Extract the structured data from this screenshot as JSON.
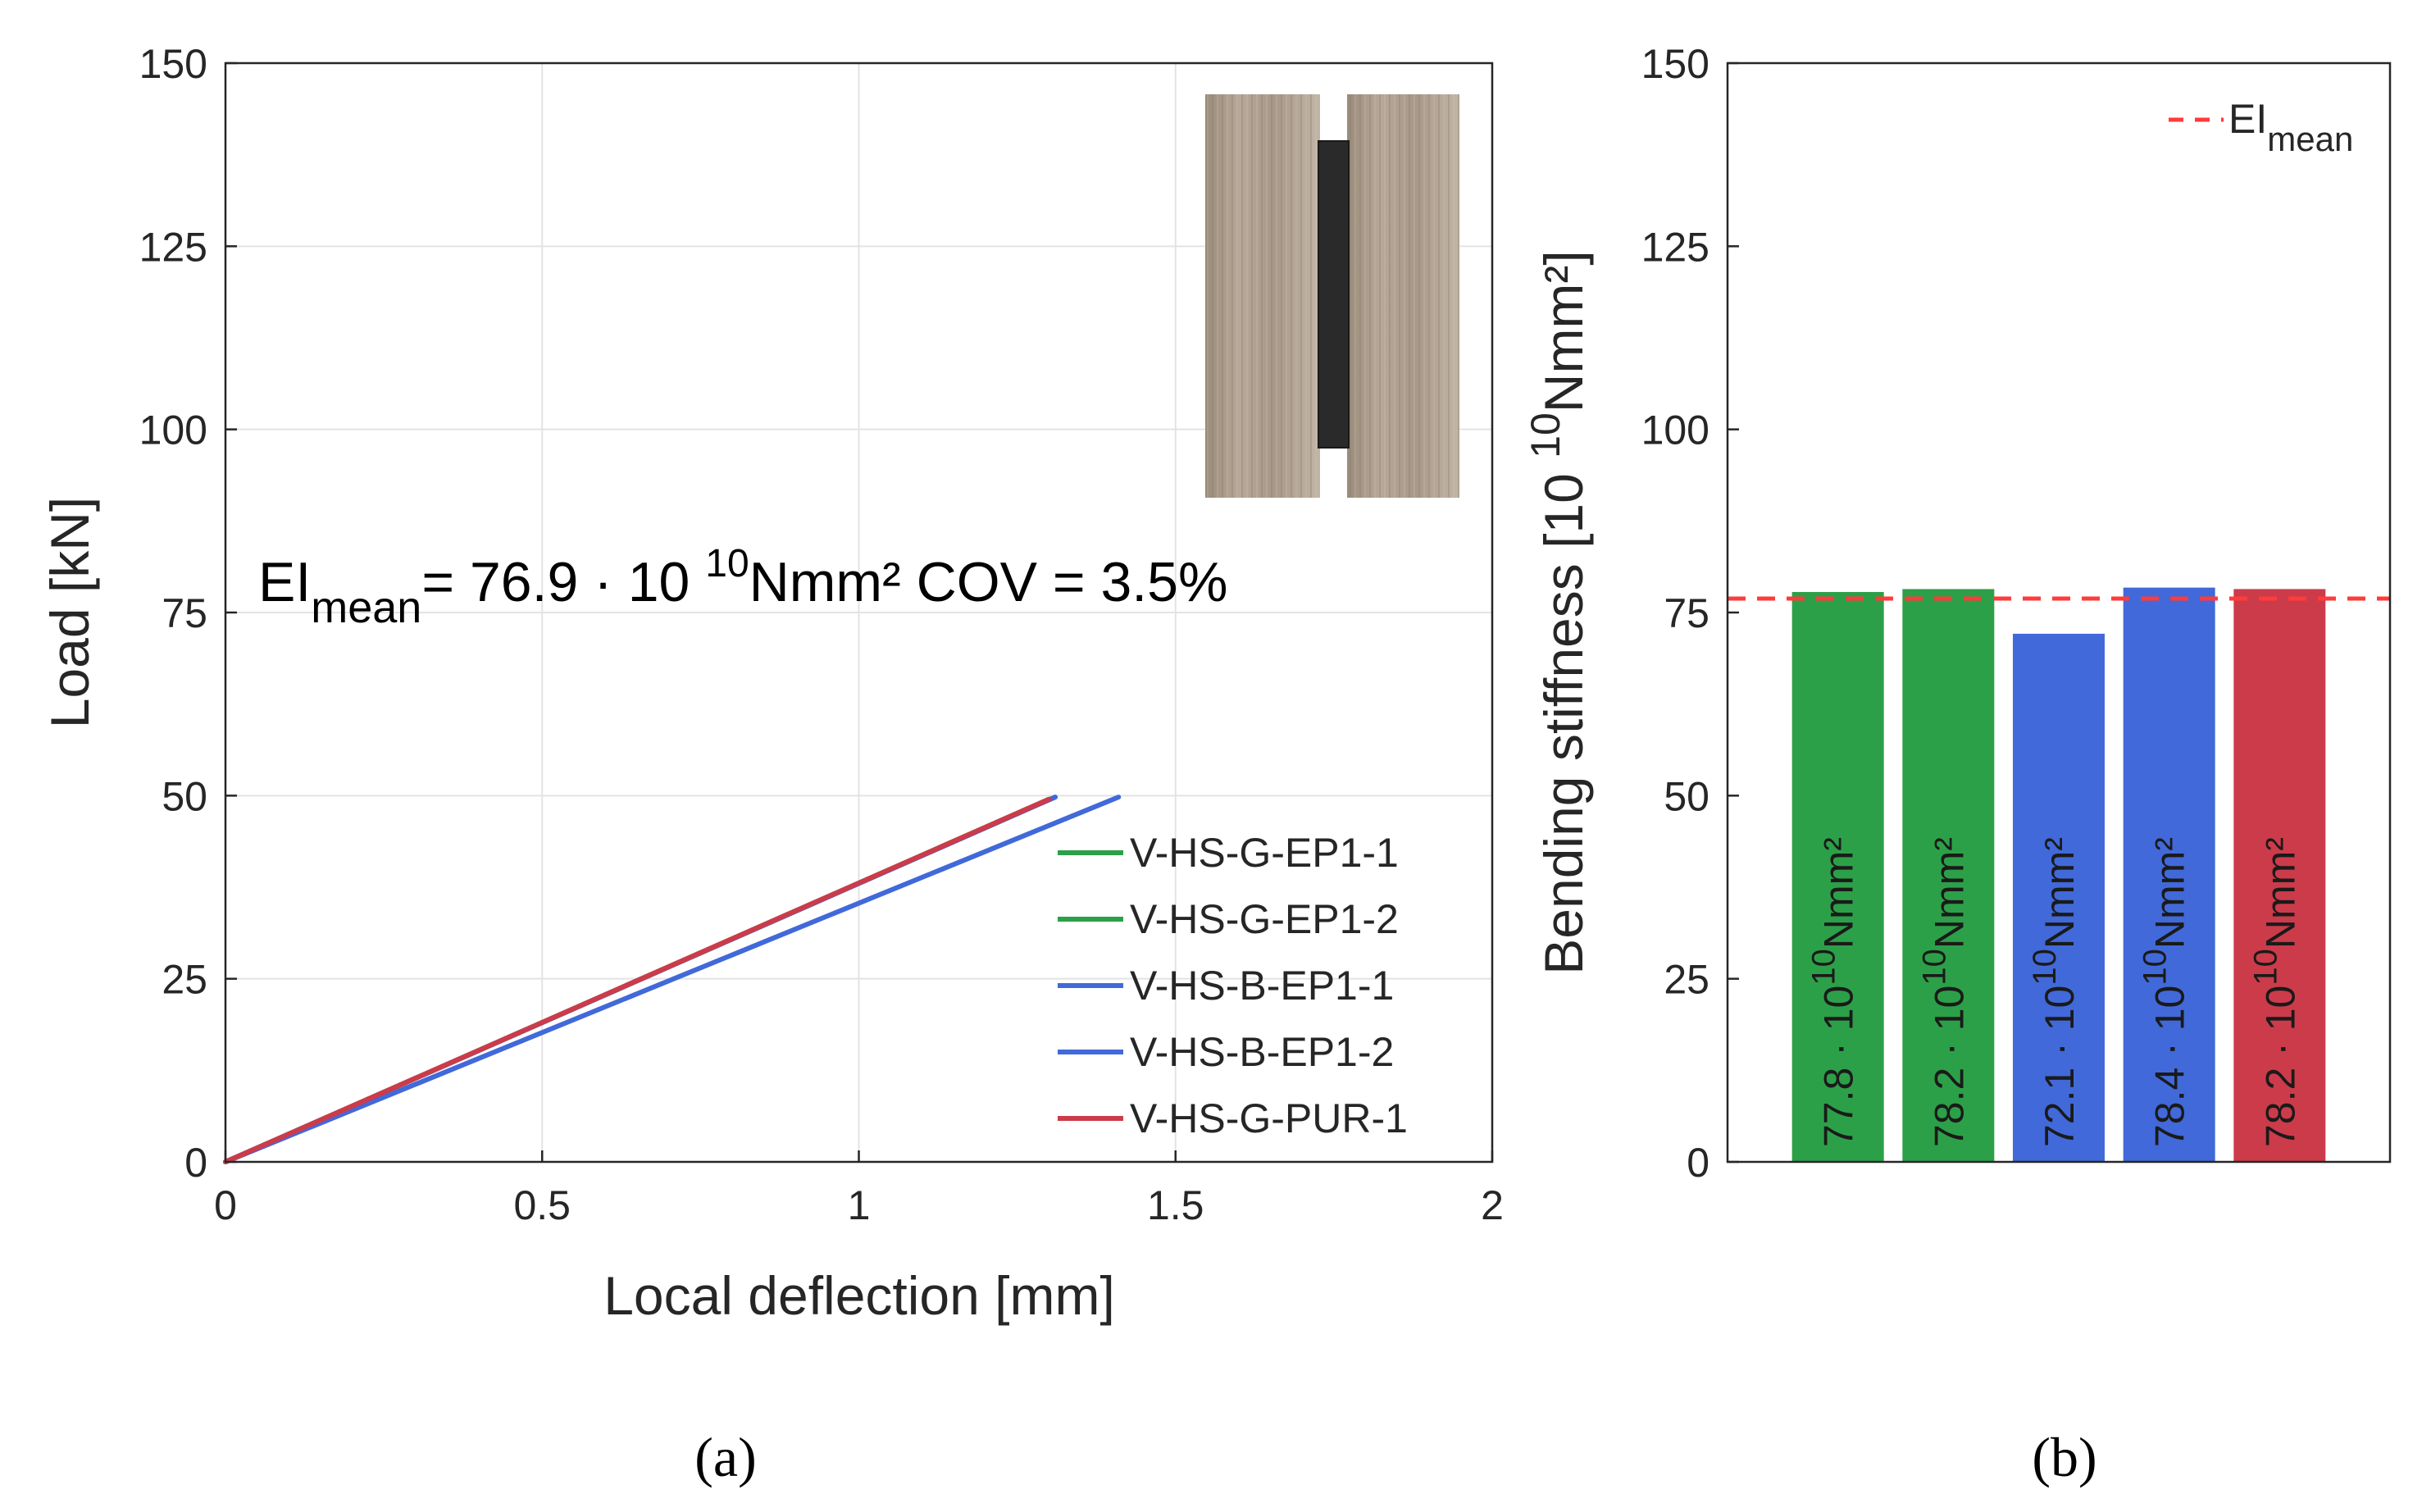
{
  "chart_data": [
    {
      "type": "line",
      "panel_label": "(a)",
      "xlabel": "Local deflection [mm]",
      "ylabel": "Load [kN]",
      "xlim": [
        0,
        2
      ],
      "ylim": [
        0,
        150
      ],
      "xticks": [
        "0",
        "0.5",
        "1",
        "1.5",
        "2"
      ],
      "yticks": [
        "0",
        "25",
        "50",
        "75",
        "100",
        "125",
        "150"
      ],
      "grid": true,
      "legend_position": "lower-right",
      "annotation": {
        "prefix": "EI",
        "sub": "mean",
        "middle": "= 76.9 · 10 ",
        "sup": "10",
        "suffix": "Nmm² COV = 3.5%"
      },
      "inset_image": "timber specimen photo (two wood lamellae with dark adhesive strip)",
      "series": [
        {
          "name": "V-HS-G-EP1-1",
          "color": "#2ca048",
          "x": [
            0,
            1.3
          ],
          "y": [
            0,
            49.5
          ]
        },
        {
          "name": "V-HS-G-EP1-2",
          "color": "#2ca048",
          "x": [
            0,
            1.31
          ],
          "y": [
            0,
            49.8
          ]
        },
        {
          "name": "V-HS-B-EP1-1",
          "color": "#4169d9",
          "x": [
            0,
            1.41
          ],
          "y": [
            0,
            49.8
          ]
        },
        {
          "name": "V-HS-B-EP1-2",
          "color": "#4169d9",
          "x": [
            0,
            1.31
          ],
          "y": [
            0,
            49.8
          ]
        },
        {
          "name": "V-HS-G-PUR-1",
          "color": "#cc3b4a",
          "x": [
            0,
            1.3
          ],
          "y": [
            0,
            49.5
          ]
        }
      ]
    },
    {
      "type": "bar",
      "panel_label": "(b)",
      "ylabel_main": "Bending stiffness [10 ",
      "ylabel_sup": "10",
      "ylabel_end": "Nmm²]",
      "ylim": [
        0,
        150
      ],
      "yticks": [
        "0",
        "25",
        "50",
        "75",
        "100",
        "125",
        "150"
      ],
      "grid": false,
      "mean_line": {
        "value": 76.9,
        "label_main": "EI",
        "label_sub": "mean",
        "color": "#ff3b3b"
      },
      "bars": [
        {
          "value": 77.8,
          "text": "77.8",
          "color": "#2ca048"
        },
        {
          "value": 78.2,
          "text": "78.2",
          "color": "#2ca048"
        },
        {
          "value": 72.1,
          "text": "72.1",
          "color": "#4169d9"
        },
        {
          "value": 78.4,
          "text": "78.4",
          "color": "#4169d9"
        },
        {
          "value": 78.2,
          "text": "78.2",
          "color": "#cc3b4a"
        }
      ],
      "bar_label_mid": " · 10",
      "bar_label_sup": "10",
      "bar_label_end": "Nmm²"
    }
  ]
}
